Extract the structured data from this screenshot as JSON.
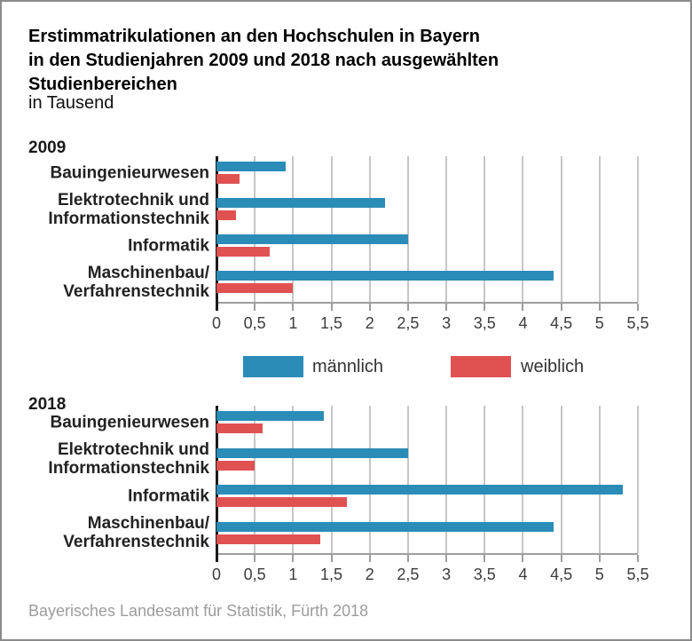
{
  "header": {
    "title_line1": "Erstimmatrikulationen an den Hochschulen in Bayern",
    "title_line2": "in den Studienjahren 2009 und 2018 nach ausgewählten",
    "title_line3": "Studienbereichen",
    "subtitle": "in Tausend"
  },
  "legend": {
    "items": [
      {
        "label": "männlich",
        "color": "#2B8CB8"
      },
      {
        "label": "weiblich",
        "color": "#E05252"
      }
    ]
  },
  "footer": {
    "source": "Bayerisches Landesamt für Statistik, Fürth 2018"
  },
  "chart_data": [
    {
      "type": "bar",
      "orientation": "horizontal",
      "title": "2009",
      "unit": "Tausend",
      "categories": [
        [
          "Bauingenieurwesen"
        ],
        [
          "Elektrotechnik und",
          "Informationstechnik"
        ],
        [
          "Informatik"
        ],
        [
          "Maschinenbau/",
          "Verfahrenstechnik"
        ]
      ],
      "series": [
        {
          "name": "männlich",
          "color": "#2B8CB8",
          "values": [
            0.9,
            2.2,
            2.5,
            4.4
          ]
        },
        {
          "name": "weiblich",
          "color": "#E05252",
          "values": [
            0.3,
            0.25,
            0.7,
            1.0
          ]
        }
      ],
      "xlim": [
        0,
        5.5
      ],
      "xticks": [
        0,
        0.5,
        1,
        1.5,
        2,
        2.5,
        3,
        3.5,
        4,
        4.5,
        5,
        5.5
      ],
      "xtick_labels": [
        "0",
        "0,5",
        "1",
        "1,5",
        "2",
        "2,5",
        "3",
        "3,5",
        "4",
        "4,5",
        "5",
        "5,5"
      ],
      "grid": true,
      "legend_position": "below"
    },
    {
      "type": "bar",
      "orientation": "horizontal",
      "title": "2018",
      "unit": "Tausend",
      "categories": [
        [
          "Bauingenieurwesen"
        ],
        [
          "Elektrotechnik und",
          "Informationstechnik"
        ],
        [
          "Informatik"
        ],
        [
          "Maschinenbau/",
          "Verfahrenstechnik"
        ]
      ],
      "series": [
        {
          "name": "männlich",
          "color": "#2B8CB8",
          "values": [
            1.4,
            2.5,
            5.3,
            4.4
          ]
        },
        {
          "name": "weiblich",
          "color": "#E05252",
          "values": [
            0.6,
            0.5,
            1.7,
            1.35
          ]
        }
      ],
      "xlim": [
        0,
        5.5
      ],
      "xticks": [
        0,
        0.5,
        1,
        1.5,
        2,
        2.5,
        3,
        3.5,
        4,
        4.5,
        5,
        5.5
      ],
      "xtick_labels": [
        "0",
        "0,5",
        "1",
        "1,5",
        "2",
        "2,5",
        "3",
        "3,5",
        "4",
        "4,5",
        "5",
        "5,5"
      ],
      "grid": true,
      "legend_position": "above"
    }
  ]
}
